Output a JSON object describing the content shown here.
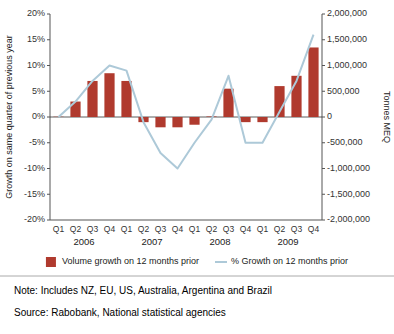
{
  "chart_data": {
    "type": "bar",
    "categories": [
      "Q1",
      "Q2",
      "Q3",
      "Q4",
      "Q1",
      "Q2",
      "Q3",
      "Q4",
      "Q1",
      "Q2",
      "Q3",
      "Q4",
      "Q1",
      "Q2",
      "Q3",
      "Q4"
    ],
    "series": [
      {
        "name": "Volume growth on 12 months prior",
        "color": "#b03a2e",
        "axis": "y2",
        "values": [
          5000,
          300000,
          700000,
          850000,
          700000,
          -100000,
          -200000,
          -200000,
          -150000,
          10000,
          550000,
          -100000,
          -100000,
          600000,
          800000,
          1350000
        ]
      },
      {
        "name": "% Growth on 12 months prior",
        "type": "line",
        "color": "#adc9d8",
        "values": [
          0.0,
          3.0,
          7.0,
          10.0,
          9.0,
          -1.0,
          -7.0,
          -10.0,
          -5.0,
          -0.5,
          8.0,
          -5.0,
          -5.0,
          1.0,
          7.0,
          16.0
        ]
      }
    ],
    "ylabel": "Growth on same quarter of previous year",
    "y2label": "Tonnes MEQ",
    "ylim": [
      -20,
      20
    ],
    "yticks": [
      {
        "value": -20,
        "label": "-20%"
      },
      {
        "value": -15,
        "label": "-15%"
      },
      {
        "value": -10,
        "label": "-10%"
      },
      {
        "value": -5,
        "label": "-5%"
      },
      {
        "value": 0,
        "label": "0%"
      },
      {
        "value": 5,
        "label": "5%"
      },
      {
        "value": 10,
        "label": "10%"
      },
      {
        "value": 15,
        "label": "15%"
      },
      {
        "value": 20,
        "label": "20%"
      }
    ],
    "y2lim": [
      -2000000,
      2000000
    ],
    "y2ticks": [
      {
        "value": -2000000,
        "label": "-2,000,000"
      },
      {
        "value": -1500000,
        "label": "-1,500,000"
      },
      {
        "value": -1000000,
        "label": "-1,000,000"
      },
      {
        "value": -500000,
        "label": "-500,000"
      },
      0,
      {
        "value": 500000,
        "label": "500,000"
      },
      {
        "value": 1000000,
        "label": "1,000,000"
      },
      {
        "value": 1500000,
        "label": "1,500,000"
      },
      {
        "value": 2000000,
        "label": "2,000,000"
      }
    ],
    "annotations": [
      {
        "text": "2006",
        "x": 1.5
      },
      {
        "text": "2007",
        "x": 5.5
      },
      {
        "text": "2008",
        "x": 9.5
      },
      {
        "text": "2009",
        "x": 13.5
      }
    ],
    "note": "Note: Includes NZ, EU, US, Australia, Argentina and Brazil",
    "source": "Source: Rabobank, National statistical agencies",
    "legend": "bottom",
    "grid": false
  }
}
